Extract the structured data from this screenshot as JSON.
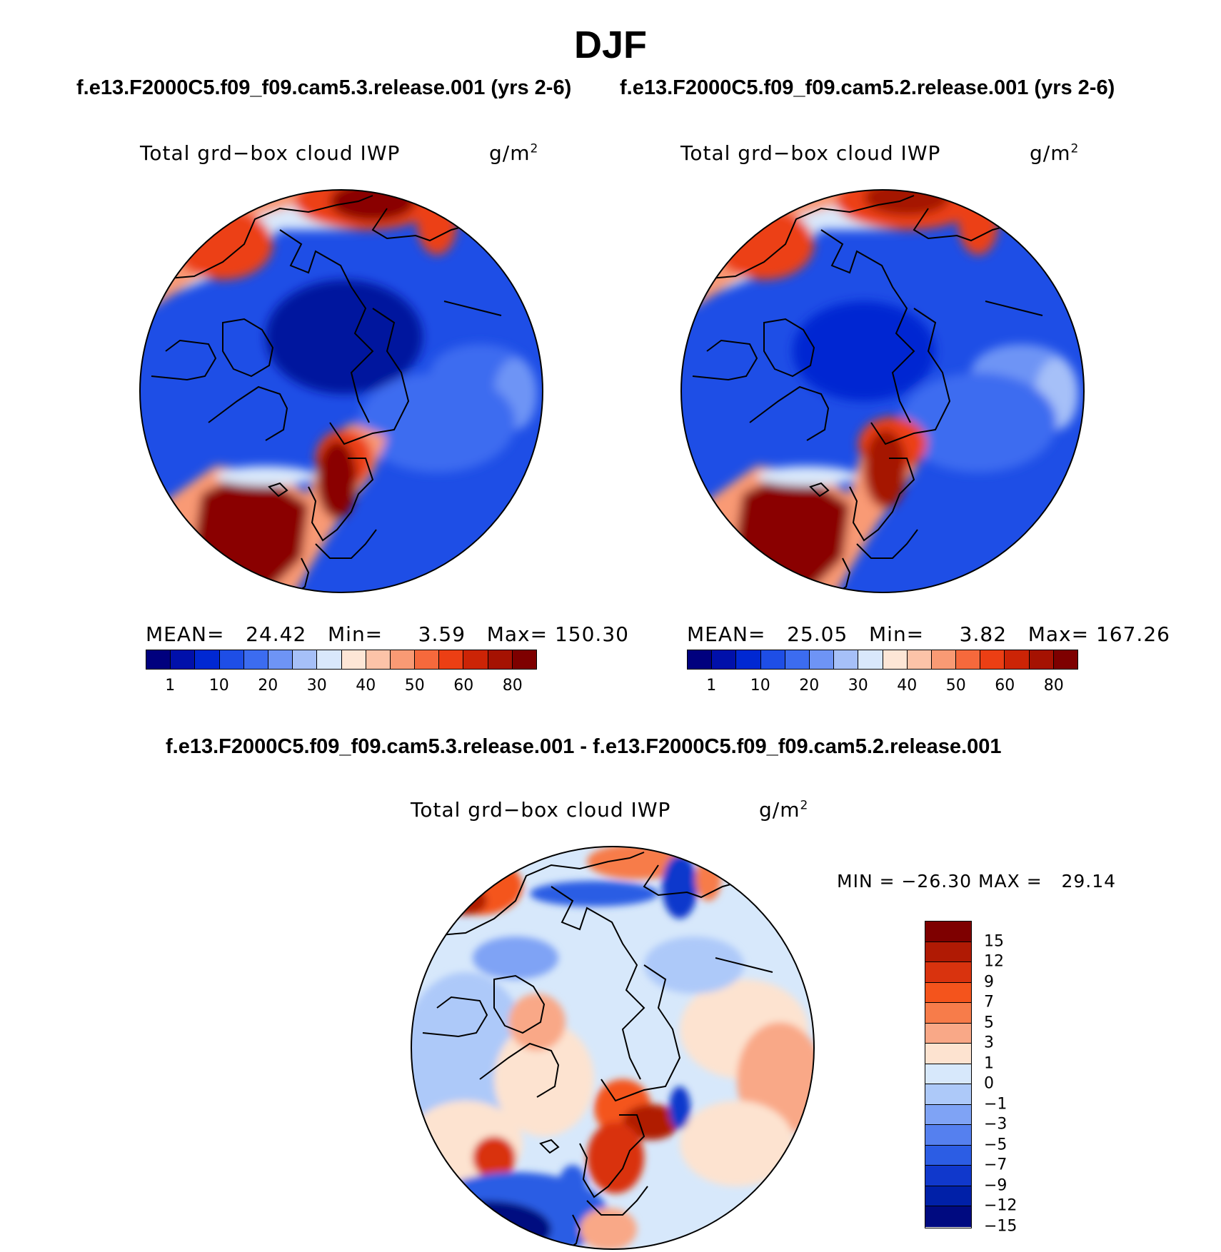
{
  "figure": {
    "title": "DJF",
    "left_case": "f.e13.F2000C5.f09_f09.cam5.3.release.001 (yrs 2-6)",
    "right_case": "f.e13.F2000C5.f09_f09.cam5.2.release.001 (yrs 2-6)",
    "diff_title": "f.e13.F2000C5.f09_f09.cam5.3.release.001 - f.e13.F2000C5.f09_f09.cam5.2.release.001"
  },
  "panels": [
    {
      "variable": "Total grd−box cloud IWP",
      "units_base": "g/m",
      "units_exp": "2",
      "mean_label": "MEAN=",
      "mean": "24.42",
      "min_label": "Min=",
      "min": "3.59",
      "max_label": "Max=",
      "max": "150.30"
    },
    {
      "variable": "Total grd−box cloud IWP",
      "units_base": "g/m",
      "units_exp": "2",
      "mean_label": "MEAN=",
      "mean": "25.05",
      "min_label": "Min=",
      "min": "3.82",
      "max_label": "Max=",
      "max": "167.26"
    },
    {
      "variable": "Total grd−box cloud IWP",
      "units_base": "g/m",
      "units_exp": "2",
      "minmax": "MIN = −26.30 MAX =   29.14"
    }
  ],
  "colorbar_abs": {
    "colors": [
      "#00007e",
      "#0010aa",
      "#0028d2",
      "#1e4ee6",
      "#3c6cf0",
      "#6e94f5",
      "#a6c0f8",
      "#d9e8fb",
      "#fde6d6",
      "#fcc3a8",
      "#f99a74",
      "#f6693c",
      "#ec3f14",
      "#cc2406",
      "#a51202",
      "#7e0000"
    ],
    "labels": [
      "1",
      "10",
      "20",
      "30",
      "40",
      "50",
      "60",
      "80"
    ]
  },
  "colorbar_diff": {
    "colors": [
      "#7e0000",
      "#b01a04",
      "#d9330e",
      "#f4541c",
      "#f77c4a",
      "#f9a887",
      "#fde3d0",
      "#d7e8fb",
      "#adc9f9",
      "#7fa3f5",
      "#5580ef",
      "#2c5de4",
      "#1038cc",
      "#0020a8",
      "#000a80"
    ],
    "labels": [
      "15",
      "12",
      "9",
      "7",
      "5",
      "3",
      "1",
      "0",
      "−1",
      "−3",
      "−5",
      "−7",
      "−9",
      "−12",
      "−15"
    ]
  },
  "map_colors": {
    "deep_blue": "#00129e",
    "blue": "#1e4ee6",
    "mid_blue": "#3c6cf0",
    "light_blue": "#a6c0f8",
    "pale_blue": "#d9e8fb",
    "pale_red": "#fde6d6",
    "salmon": "#f99a74",
    "red": "#ec3f14",
    "dark_red": "#8a0000"
  }
}
